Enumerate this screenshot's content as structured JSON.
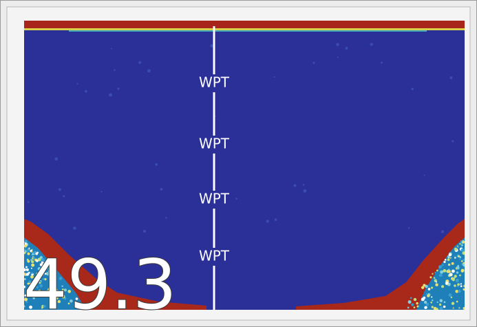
{
  "waypoints": [
    "WPT",
    "WPT",
    "WPT",
    "WPT"
  ],
  "depth": "49.3"
}
